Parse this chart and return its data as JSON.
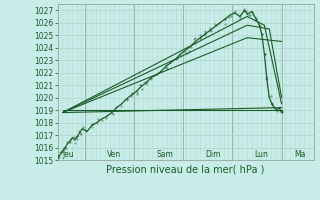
{
  "bg_color": "#c8ece8",
  "grid_color": "#b0d4cc",
  "line_color": "#1a5c28",
  "ylim": [
    1015,
    1027.5
  ],
  "yticks": [
    1015,
    1016,
    1017,
    1018,
    1019,
    1020,
    1021,
    1022,
    1023,
    1024,
    1025,
    1026,
    1027
  ],
  "xlabel": "Pression niveau de la mer( hPa )",
  "days": [
    "Jeu",
    "Ven",
    "Sam",
    "Dim",
    "Lun",
    "Ma"
  ],
  "xlim": [
    0,
    5.2
  ],
  "day_x": [
    0.1,
    1.0,
    2.0,
    3.0,
    4.0,
    4.8
  ],
  "vline_x": [
    0.55,
    1.55,
    2.55,
    3.55,
    4.55
  ],
  "noisy_x": [
    0.0,
    0.05,
    0.1,
    0.15,
    0.2,
    0.25,
    0.3,
    0.35,
    0.4,
    0.45,
    0.5,
    0.6,
    0.7,
    0.8,
    0.9,
    1.0,
    1.1,
    1.2,
    1.3,
    1.4,
    1.5,
    1.6,
    1.7,
    1.8,
    1.9,
    2.0,
    2.1,
    2.2,
    2.3,
    2.4,
    2.5,
    2.6,
    2.7,
    2.8,
    2.9,
    3.0,
    3.1,
    3.2,
    3.3,
    3.4,
    3.5,
    3.6,
    3.7,
    3.8,
    3.85,
    3.9,
    3.95,
    4.0,
    4.05,
    4.1,
    4.15,
    4.2,
    4.25,
    4.3,
    4.35,
    4.4,
    4.45,
    4.5,
    4.55
  ],
  "noisy_y": [
    1015.2,
    1015.4,
    1015.7,
    1016.0,
    1016.3,
    1016.5,
    1016.8,
    1016.6,
    1016.9,
    1017.2,
    1017.5,
    1017.3,
    1017.8,
    1018.0,
    1018.3,
    1018.5,
    1018.8,
    1019.2,
    1019.5,
    1019.9,
    1020.2,
    1020.5,
    1020.9,
    1021.2,
    1021.6,
    1021.8,
    1022.1,
    1022.5,
    1022.8,
    1023.1,
    1023.5,
    1023.8,
    1024.1,
    1024.5,
    1024.8,
    1025.1,
    1025.4,
    1025.7,
    1026.0,
    1026.3,
    1026.6,
    1026.8,
    1026.5,
    1027.0,
    1026.7,
    1026.8,
    1026.9,
    1026.5,
    1026.2,
    1025.8,
    1025.0,
    1023.5,
    1021.5,
    1020.0,
    1019.5,
    1019.2,
    1019.0,
    1019.2,
    1018.8
  ],
  "forecast_lines": [
    {
      "x": [
        0.1,
        4.55
      ],
      "y": [
        1019.0,
        1019.0
      ],
      "lw": 0.8
    },
    {
      "x": [
        0.1,
        4.55
      ],
      "y": [
        1018.8,
        1019.2
      ],
      "lw": 0.8
    },
    {
      "x": [
        0.1,
        3.85,
        4.55
      ],
      "y": [
        1018.8,
        1024.8,
        1024.5
      ],
      "lw": 0.8
    },
    {
      "x": [
        0.1,
        3.85,
        4.3,
        4.55
      ],
      "y": [
        1018.8,
        1025.8,
        1025.5,
        1020.0
      ],
      "lw": 0.8
    },
    {
      "x": [
        0.1,
        3.85,
        4.2,
        4.55
      ],
      "y": [
        1018.8,
        1026.5,
        1025.8,
        1019.5
      ],
      "lw": 0.8
    }
  ]
}
